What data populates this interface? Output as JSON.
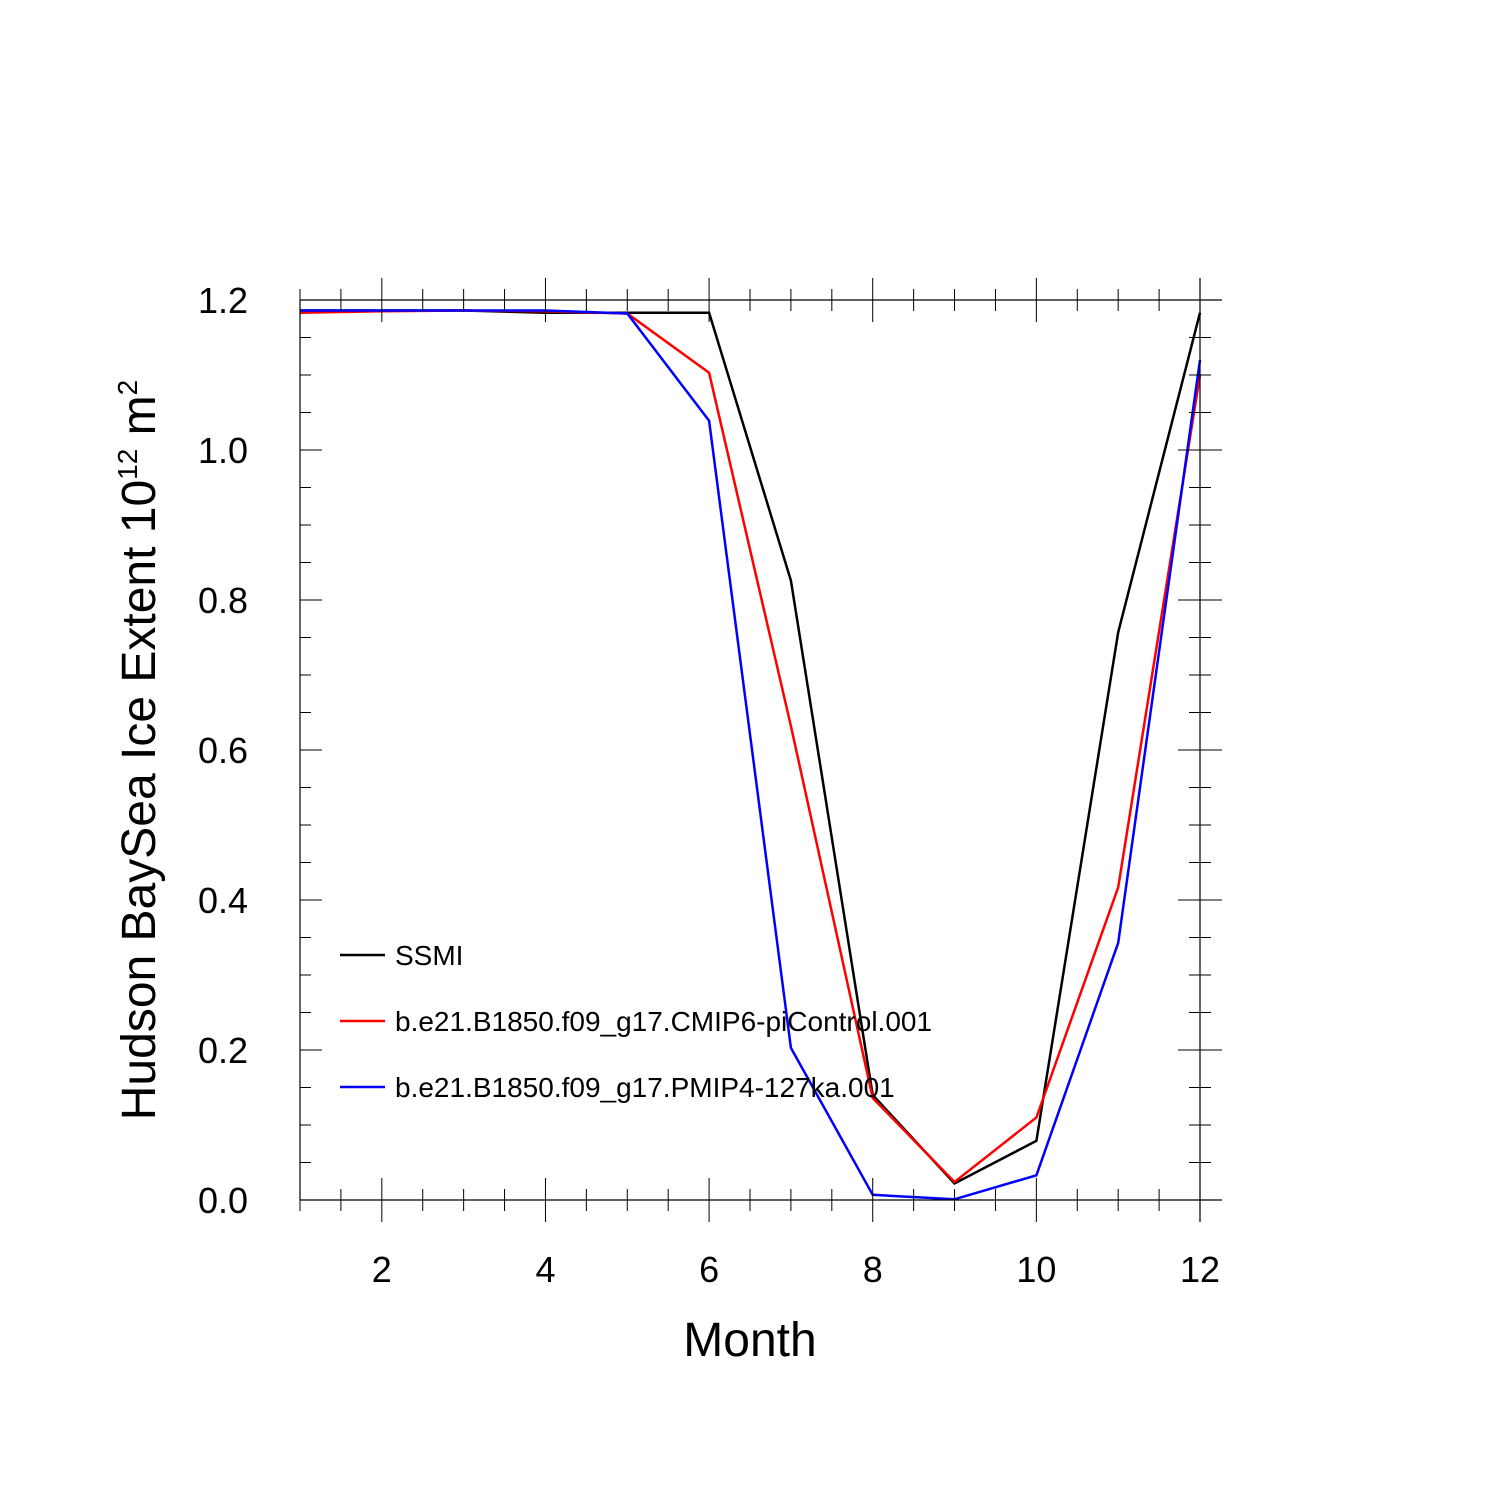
{
  "chart_data": {
    "type": "line",
    "title": "",
    "xlabel": "Month",
    "ylabel": {
      "main": "Hudson BaySea Ice Extent 10",
      "superscript_1": "12",
      "unit": " m",
      "superscript_2": "2"
    },
    "xlim": [
      1,
      12
    ],
    "ylim": [
      0,
      1.2
    ],
    "xticks": [
      2,
      4,
      6,
      8,
      10,
      12
    ],
    "yticks": [
      0.0,
      0.2,
      0.4,
      0.6,
      0.8,
      1.0,
      1.2
    ],
    "xtick_labels": [
      "2",
      "4",
      "6",
      "8",
      "10",
      "12"
    ],
    "ytick_labels": [
      "0.0",
      "0.2",
      "0.4",
      "0.6",
      "0.8",
      "1.0",
      "1.2"
    ],
    "grid": false,
    "legend_position": "bottom-left",
    "x": [
      1,
      2,
      3,
      4,
      5,
      6,
      7,
      8,
      9,
      10,
      11,
      12
    ],
    "series": [
      {
        "name": "SSMI",
        "color": "#000000",
        "values": [
          1.186,
          1.186,
          1.186,
          1.183,
          1.183,
          1.183,
          0.826,
          0.14,
          0.022,
          0.079,
          0.757,
          1.183
        ]
      },
      {
        "name": "b.e21.B1850.f09_g17.CMIP6-piControl.001",
        "color": "#ff0000",
        "values": [
          1.183,
          1.185,
          1.186,
          1.185,
          1.182,
          1.103,
          0.632,
          0.136,
          0.024,
          0.11,
          0.417,
          1.1
        ]
      },
      {
        "name": "b.e21.B1850.f09_g17.PMIP4-127ka.001",
        "color": "#0000ff",
        "values": [
          1.186,
          1.186,
          1.186,
          1.186,
          1.182,
          1.039,
          0.203,
          0.007,
          0.001,
          0.033,
          0.343,
          1.12
        ]
      }
    ]
  }
}
